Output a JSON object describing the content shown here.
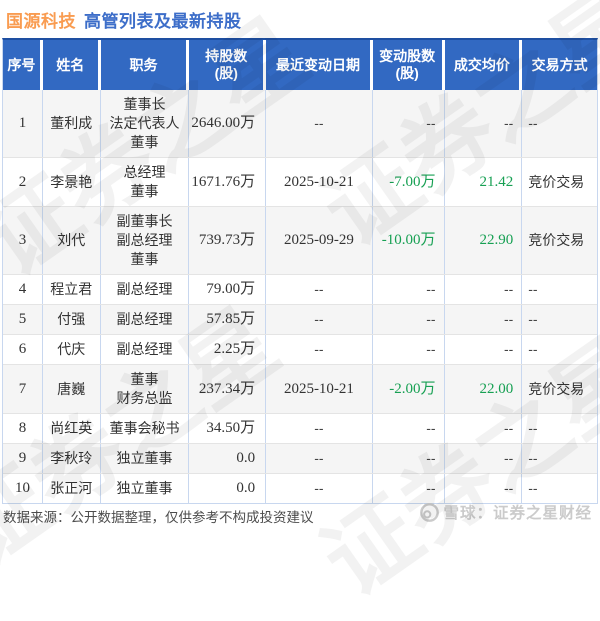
{
  "title": {
    "stock": "国源科技",
    "rest": "高管列表及最新持股"
  },
  "colors": {
    "header_bg": "#3269C2",
    "header_top_border": "#1E4FA1",
    "title_stock": "#F99C51",
    "title_rest": "#3D6EC9",
    "negative_green": "#17A053",
    "row_stripe": "#F5F5F5",
    "cell_border_vertical": "#C8D7EF",
    "cell_border_horizontal": "#E4E4E4"
  },
  "table": {
    "headers": [
      {
        "key": "no",
        "line1": "序号",
        "line2": ""
      },
      {
        "key": "name",
        "line1": "姓名",
        "line2": ""
      },
      {
        "key": "position",
        "line1": "职务",
        "line2": ""
      },
      {
        "key": "shares",
        "line1": "持股数",
        "line2": "(股)"
      },
      {
        "key": "change-date",
        "line1": "最近变动日期",
        "line2": ""
      },
      {
        "key": "change-shares",
        "line1": "变动股数",
        "line2": "(股)"
      },
      {
        "key": "avg-price",
        "line1": "成交均价",
        "line2": ""
      },
      {
        "key": "trade-method",
        "line1": "交易方式",
        "line2": ""
      }
    ],
    "rows": [
      {
        "no": "1",
        "name": "董利成",
        "positions": [
          "董事长",
          "法定代表人",
          "董事"
        ],
        "shares": "2646.00万",
        "date": "--",
        "change": "--",
        "price": "--",
        "method": "--"
      },
      {
        "no": "2",
        "name": "李景艳",
        "positions": [
          "总经理",
          "董事"
        ],
        "shares": "1671.76万",
        "date": "2025-10-21",
        "change": "-7.00万",
        "price": "21.42",
        "method": "竞价交易"
      },
      {
        "no": "3",
        "name": "刘代",
        "positions": [
          "副董事长",
          "副总经理",
          "董事"
        ],
        "shares": "739.73万",
        "date": "2025-09-29",
        "change": "-10.00万",
        "price": "22.90",
        "method": "竞价交易"
      },
      {
        "no": "4",
        "name": "程立君",
        "positions": [
          "副总经理"
        ],
        "shares": "79.00万",
        "date": "--",
        "change": "--",
        "price": "--",
        "method": "--"
      },
      {
        "no": "5",
        "name": "付强",
        "positions": [
          "副总经理"
        ],
        "shares": "57.85万",
        "date": "--",
        "change": "--",
        "price": "--",
        "method": "--"
      },
      {
        "no": "6",
        "name": "代庆",
        "positions": [
          "副总经理"
        ],
        "shares": "2.25万",
        "date": "--",
        "change": "--",
        "price": "--",
        "method": "--"
      },
      {
        "no": "7",
        "name": "唐巍",
        "positions": [
          "董事",
          "财务总监"
        ],
        "shares": "237.34万",
        "date": "2025-10-21",
        "change": "-2.00万",
        "price": "22.00",
        "method": "竞价交易"
      },
      {
        "no": "8",
        "name": "尚红英",
        "positions": [
          "董事会秘书"
        ],
        "shares": "34.50万",
        "date": "--",
        "change": "--",
        "price": "--",
        "method": "--"
      },
      {
        "no": "9",
        "name": "李秋玲",
        "positions": [
          "独立董事"
        ],
        "shares": "0.0",
        "date": "--",
        "change": "--",
        "price": "--",
        "method": "--"
      },
      {
        "no": "10",
        "name": "张正河",
        "positions": [
          "独立董事"
        ],
        "shares": "0.0",
        "date": "--",
        "change": "--",
        "price": "--",
        "method": "--"
      }
    ]
  },
  "footer": {
    "source": "数据来源：公开数据整理，仅供参考不构成投资建议",
    "brand": "雪球：证券之星财经",
    "brand_icon": "snowball-logo-icon"
  },
  "watermark": {
    "text": "证券之星"
  }
}
